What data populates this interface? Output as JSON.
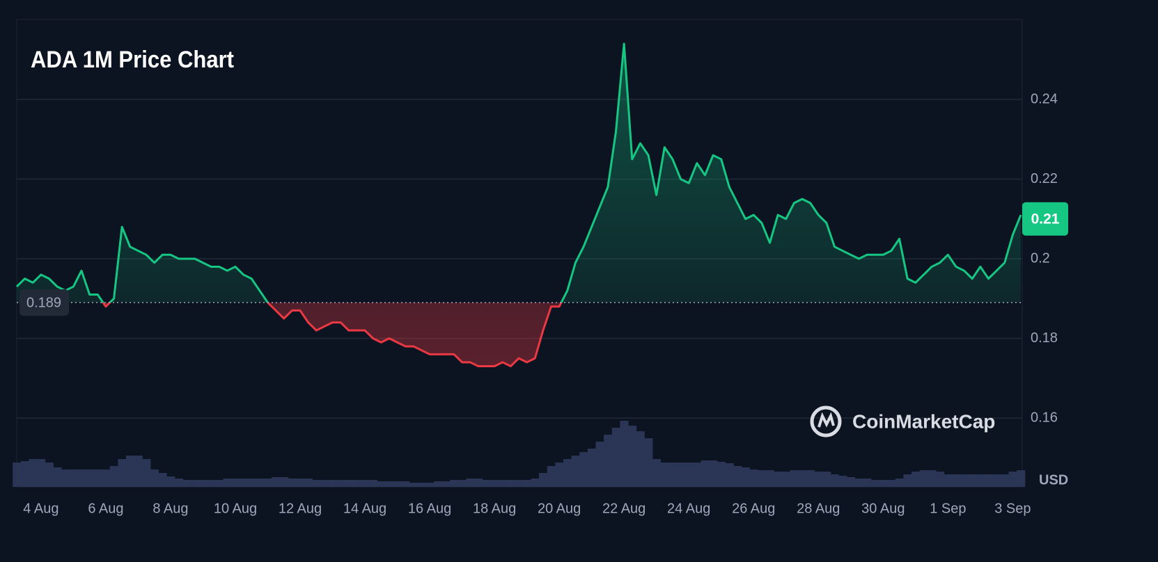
{
  "chart_data": {
    "type": "baseline-line",
    "title": "ADA 1M Price Chart",
    "currency": "USD",
    "watermark": "CoinMarketCap",
    "categories": [
      null,
      null,
      null,
      "4 Aug",
      null,
      null,
      null,
      null,
      null,
      null,
      null,
      "6 Aug",
      null,
      null,
      null,
      null,
      null,
      null,
      null,
      "8 Aug",
      null,
      null,
      null,
      null,
      null,
      null,
      null,
      "10 Aug",
      null,
      null,
      null,
      null,
      null,
      null,
      null,
      "12 Aug",
      null,
      null,
      null,
      null,
      null,
      null,
      null,
      "14 Aug",
      null,
      null,
      null,
      null,
      null,
      null,
      null,
      "16 Aug",
      null,
      null,
      null,
      null,
      null,
      null,
      null,
      "18 Aug",
      null,
      null,
      null,
      null,
      null,
      null,
      null,
      "20 Aug",
      null,
      null,
      null,
      null,
      null,
      null,
      null,
      "22 Aug",
      null,
      null,
      null,
      null,
      null,
      null,
      null,
      "24 Aug",
      null,
      null,
      null,
      null,
      null,
      null,
      null,
      "26 Aug",
      null,
      null,
      null,
      null,
      null,
      null,
      null,
      "28 Aug",
      null,
      null,
      null,
      null,
      null,
      null,
      null,
      "30 Aug",
      null,
      null,
      null,
      null,
      null,
      null,
      null,
      "1 Sep",
      null,
      null,
      null,
      null,
      null,
      null,
      null,
      "3 Sep",
      null
    ],
    "values": [
      0.193,
      0.195,
      0.194,
      0.196,
      0.195,
      0.193,
      0.192,
      0.193,
      0.197,
      0.191,
      0.191,
      0.188,
      0.19,
      0.208,
      0.203,
      0.202,
      0.201,
      0.199,
      0.201,
      0.201,
      0.2,
      0.2,
      0.2,
      0.199,
      0.198,
      0.198,
      0.197,
      0.198,
      0.196,
      0.195,
      0.192,
      0.189,
      0.187,
      0.185,
      0.187,
      0.187,
      0.184,
      0.182,
      0.183,
      0.184,
      0.184,
      0.182,
      0.182,
      0.182,
      0.18,
      0.179,
      0.18,
      0.179,
      0.178,
      0.178,
      0.177,
      0.176,
      0.176,
      0.176,
      0.176,
      0.174,
      0.174,
      0.173,
      0.173,
      0.173,
      0.174,
      0.173,
      0.175,
      0.174,
      0.175,
      0.182,
      0.188,
      0.188,
      0.192,
      0.199,
      0.203,
      0.208,
      0.213,
      0.218,
      0.232,
      0.254,
      0.225,
      0.229,
      0.226,
      0.216,
      0.228,
      0.225,
      0.22,
      0.219,
      0.224,
      0.221,
      0.226,
      0.225,
      0.218,
      0.214,
      0.21,
      0.211,
      0.209,
      0.204,
      0.211,
      0.21,
      0.214,
      0.215,
      0.214,
      0.211,
      0.209,
      0.203,
      0.202,
      0.201,
      0.2,
      0.201,
      0.201,
      0.201,
      0.202,
      0.205,
      0.195,
      0.194,
      0.196,
      0.198,
      0.199,
      0.201,
      0.198,
      0.197,
      0.195,
      0.198,
      0.195,
      0.197,
      0.199,
      0.206,
      0.211
    ],
    "volume": [
      35,
      37,
      40,
      40,
      35,
      28,
      25,
      25,
      25,
      25,
      25,
      25,
      30,
      40,
      45,
      45,
      40,
      25,
      20,
      15,
      12,
      10,
      10,
      10,
      10,
      10,
      12,
      12,
      12,
      12,
      12,
      12,
      14,
      14,
      12,
      12,
      12,
      10,
      10,
      10,
      10,
      10,
      10,
      10,
      10,
      8,
      8,
      8,
      8,
      6,
      6,
      6,
      8,
      8,
      10,
      10,
      12,
      12,
      10,
      10,
      10,
      10,
      10,
      10,
      12,
      20,
      30,
      35,
      40,
      45,
      50,
      55,
      65,
      75,
      85,
      95,
      88,
      80,
      70,
      40,
      35,
      35,
      35,
      35,
      35,
      38,
      38,
      36,
      34,
      30,
      28,
      25,
      24,
      24,
      22,
      22,
      24,
      24,
      24,
      22,
      22,
      18,
      16,
      14,
      12,
      12,
      10,
      10,
      10,
      12,
      18,
      22,
      24,
      24,
      22,
      18,
      18,
      18,
      18,
      18,
      18,
      18,
      18,
      22,
      24
    ],
    "baseline": 0.189,
    "current_price": 0.21,
    "up_color": "#16c784",
    "down_color": "#ea3943",
    "volume_color": "#2b3555",
    "ylim": [
      0.1427,
      0.2601
    ],
    "yticks": [
      0.16,
      0.18,
      0.2,
      0.22,
      0.24
    ],
    "grid": true
  }
}
